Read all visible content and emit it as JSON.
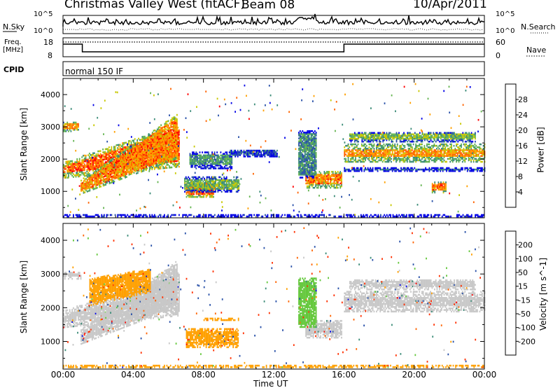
{
  "header": {
    "station": "Christmas Valley West (fitACF)",
    "beam": "Beam 08",
    "date": "10/Apr/2011"
  },
  "top_panels": {
    "nsky_label": "N.Sky",
    "nsky_ticks": [
      "10^5",
      "10^0"
    ],
    "nsearch_label": "N.Search",
    "freq_label_1": "Freq.",
    "freq_label_2": "[MHz]",
    "freq_ticks": [
      "18",
      "8"
    ],
    "nave_label": "Nave",
    "nave_ticks": [
      "60",
      "0"
    ],
    "cpid_label": "CPID",
    "cpid_value": "normal 150 IF"
  },
  "chart_data": [
    {
      "type": "heatmap",
      "name": "power",
      "ylabel": "Slant Range [km]",
      "xlabel": "",
      "x_ticks": [
        "00:00",
        "04:00",
        "08:00",
        "12:00",
        "16:00",
        "20:00",
        "00:00"
      ],
      "y_ticks": [
        1000,
        2000,
        3000,
        4000
      ],
      "ylim": [
        180,
        4500
      ],
      "xlim_hours": [
        0,
        24
      ],
      "colorbar": {
        "label": "Power [dB]",
        "ticks": [
          4,
          8,
          12,
          16,
          20,
          24,
          28
        ],
        "colors": [
          "#0000e6",
          "#2850a8",
          "#3c8c78",
          "#64b450",
          "#c8c800",
          "#ffa000",
          "#ff6400",
          "#ff0000"
        ]
      },
      "regions": [
        {
          "t": [
            0.0,
            6.6
          ],
          "r0": [
            1550,
            1900
          ],
          "r1": [
            1750,
            2900
          ],
          "w": 500,
          "v": 26
        },
        {
          "t": [
            1.0,
            6.5
          ],
          "r0": [
            1000,
            2100
          ],
          "r1": [
            1250,
            3300
          ],
          "w": 300,
          "v": 24
        },
        {
          "t": [
            0.0,
            0.9
          ],
          "r0": [
            2900,
            2900
          ],
          "r1": [
            3100,
            3100
          ],
          "w": 180,
          "v": 22
        },
        {
          "t": [
            7.0,
            8.6
          ],
          "r0": [
            900,
            900
          ],
          "r1": [
            1150,
            1150
          ],
          "w": 300,
          "v": 26
        },
        {
          "t": [
            6.9,
            10.0
          ],
          "r0": [
            1050,
            1050
          ],
          "r1": [
            1350,
            1350
          ],
          "w": 260,
          "v": 14
        },
        {
          "t": [
            7.2,
            9.6
          ],
          "r0": [
            1800,
            1800
          ],
          "r1": [
            2100,
            2100
          ],
          "w": 350,
          "v": 11
        },
        {
          "t": [
            9.5,
            12.2
          ],
          "r0": [
            2100,
            2100
          ],
          "r1": [
            2250,
            2250
          ],
          "w": 120,
          "v": 5
        },
        {
          "t": [
            13.8,
            15.9
          ],
          "r0": [
            1200,
            1200
          ],
          "r1": [
            1500,
            1500
          ],
          "w": 350,
          "v": 24
        },
        {
          "t": [
            13.4,
            14.4
          ],
          "r0": [
            2800,
            2800
          ],
          "r1": [
            1500,
            1500
          ],
          "w": 300,
          "v": 10
        },
        {
          "t": [
            16.0,
            24.0
          ],
          "r0": [
            2050,
            2050
          ],
          "r1": [
            2300,
            2300
          ],
          "w": 500,
          "v": 23
        },
        {
          "t": [
            16.3,
            23.5
          ],
          "r0": [
            2600,
            2600
          ],
          "r1": [
            2750,
            2750
          ],
          "w": 250,
          "v": 15
        },
        {
          "t": [
            16.0,
            24.0
          ],
          "r0": [
            1650,
            1650
          ],
          "r1": [
            1700,
            1700
          ],
          "w": 120,
          "v": 6
        },
        {
          "t": [
            21.0,
            21.8
          ],
          "r0": [
            1000,
            1000
          ],
          "r1": [
            1250,
            1250
          ],
          "w": 180,
          "v": 24
        },
        {
          "t": [
            0.0,
            24.0
          ],
          "r0": [
            240,
            240
          ],
          "r1": [
            240,
            240
          ],
          "w": 120,
          "v": 10
        }
      ]
    },
    {
      "type": "heatmap",
      "name": "velocity",
      "ylabel": "Slant Range [km]",
      "xlabel": "Time UT",
      "x_ticks": [
        "00:00",
        "04:00",
        "08:00",
        "12:00",
        "16:00",
        "20:00",
        "00:00"
      ],
      "y_ticks": [
        1000,
        2000,
        3000,
        4000
      ],
      "ylim": [
        180,
        4500
      ],
      "xlim_hours": [
        0,
        24
      ],
      "colorbar": {
        "label": "Velocity [m s^-1]",
        "ticks": [
          200,
          100,
          50,
          15,
          -15,
          -50,
          -100,
          -200
        ],
        "colors": [
          "#0000e6",
          "#2850a8",
          "#3c8c78",
          "#64c83c",
          "#c8c8c8",
          "#ffa000",
          "#ff6400",
          "#ff3000",
          "#ff0000"
        ]
      },
      "regions": [
        {
          "t": [
            0.0,
            6.6
          ],
          "r0": [
            1550,
            1900
          ],
          "r1": [
            1750,
            2900
          ],
          "w": 500,
          "v": 0
        },
        {
          "t": [
            1.0,
            6.5
          ],
          "r0": [
            1000,
            2100
          ],
          "r1": [
            1250,
            3300
          ],
          "w": 300,
          "v": 0
        },
        {
          "t": [
            1.5,
            5.0
          ],
          "r0": [
            2100,
            2500
          ],
          "r1": [
            2800,
            3100
          ],
          "w": 160,
          "v": -30
        },
        {
          "t": [
            7.0,
            10.0
          ],
          "r0": [
            900,
            900
          ],
          "r1": [
            1300,
            1300
          ],
          "w": 300,
          "v": -30
        },
        {
          "t": [
            8.0,
            10.0
          ],
          "r0": [
            1650,
            1650
          ],
          "r1": [
            1650,
            1650
          ],
          "w": 120,
          "v": -30
        },
        {
          "t": [
            13.8,
            15.9
          ],
          "r0": [
            1200,
            1200
          ],
          "r1": [
            1500,
            1500
          ],
          "w": 350,
          "v": 0
        },
        {
          "t": [
            13.4,
            14.4
          ],
          "r0": [
            2800,
            2800
          ],
          "r1": [
            1500,
            1500
          ],
          "w": 300,
          "v": 30
        },
        {
          "t": [
            16.0,
            24.0
          ],
          "r0": [
            2050,
            2050
          ],
          "r1": [
            2300,
            2300
          ],
          "w": 600,
          "v": 0
        },
        {
          "t": [
            16.3,
            23.5
          ],
          "r0": [
            2600,
            2600
          ],
          "r1": [
            2750,
            2750
          ],
          "w": 250,
          "v": 0
        },
        {
          "t": [
            0.0,
            24.0
          ],
          "r0": [
            260,
            260
          ],
          "r1": [
            260,
            260
          ],
          "w": 140,
          "v": -30
        },
        {
          "t": [
            0.0,
            1.0
          ],
          "r0": [
            2900,
            2900
          ],
          "r1": [
            3000,
            3000
          ],
          "w": 200,
          "v": 0
        }
      ]
    }
  ]
}
